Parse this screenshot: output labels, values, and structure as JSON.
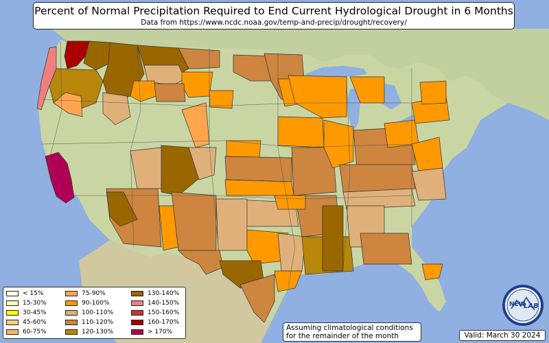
{
  "title": {
    "main": "Percent of Normal Precipitation Required to End Current Hydrological Drought in 6 Months",
    "sub": "Data from https://www.ncdc.noaa.gov/temp-and-precip/drought/recovery/"
  },
  "legend": {
    "items": [
      {
        "label": "< 15%",
        "color": "#fffde8"
      },
      {
        "label": "15-30%",
        "color": "#ffffb0"
      },
      {
        "label": "30-45%",
        "color": "#ffff00"
      },
      {
        "label": "45-60%",
        "color": "#ffcc88"
      },
      {
        "label": "60-75%",
        "color": "#ffb366"
      },
      {
        "label": "75-90%",
        "color": "#ffa64d"
      },
      {
        "label": "90-100%",
        "color": "#ff9900"
      },
      {
        "label": "100-110%",
        "color": "#e0b07a"
      },
      {
        "label": "110-120%",
        "color": "#cd853f"
      },
      {
        "label": "120-130%",
        "color": "#b8860b"
      },
      {
        "label": "130-140%",
        "color": "#996600"
      },
      {
        "label": "140-150%",
        "color": "#f08080"
      },
      {
        "label": "150-160%",
        "color": "#cc3333"
      },
      {
        "label": "160-170%",
        "color": "#aa0000"
      },
      {
        "label": "> 170%",
        "color": "#b00055"
      }
    ]
  },
  "note": {
    "line1": "Assuming climatological conditions",
    "line2": "for the remainder of the month"
  },
  "valid": "Valid: March 30 2024",
  "logo": {
    "text_left": "NEW",
    "text_right": "LAB"
  },
  "map": {
    "ocean_color": "#8fb0e0",
    "land_color": "#c9d6a4",
    "canada_color": "#c2cf9e",
    "mexico_color": "#d2c8a0",
    "lakes_color": "#8fb0e0"
  }
}
